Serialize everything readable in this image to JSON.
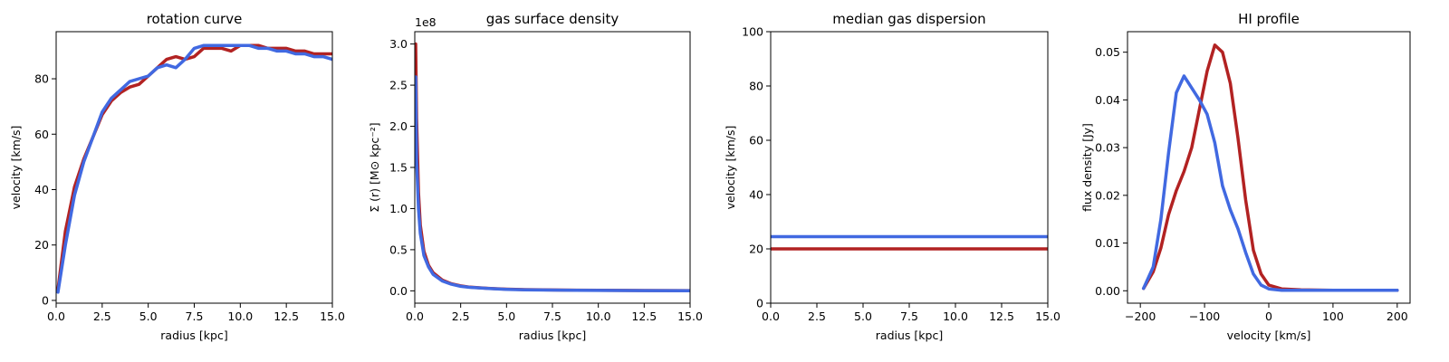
{
  "colors": {
    "red": "#b22222",
    "blue": "#4169e1",
    "axis": "#000000"
  },
  "chart_data": [
    {
      "type": "line",
      "title": "rotation curve",
      "xlabel": "radius [kpc]",
      "ylabel": "velocity [km/s]",
      "xlim": [
        0,
        15
      ],
      "ylim": [
        -1,
        97
      ],
      "xticks": [
        0,
        2.5,
        5,
        7.5,
        10,
        12.5,
        15
      ],
      "xtick_labels": [
        "0.0",
        "2.5",
        "5.0",
        "7.5",
        "10.0",
        "12.5",
        "15.0"
      ],
      "yticks": [
        0,
        20,
        40,
        60,
        80
      ],
      "ytick_labels": [
        "0",
        "20",
        "40",
        "60",
        "80"
      ],
      "grid": false,
      "series": [
        {
          "color": "#b22222",
          "x": [
            0.1,
            0.5,
            1.0,
            1.5,
            2.0,
            2.5,
            3.0,
            3.5,
            4.0,
            4.5,
            5.0,
            5.5,
            6.0,
            6.5,
            7.0,
            7.5,
            8.0,
            8.5,
            9.0,
            9.5,
            10.0,
            10.5,
            11.0,
            11.5,
            12.0,
            12.5,
            13.0,
            13.5,
            14.0,
            14.5,
            15.0
          ],
          "y": [
            4,
            25,
            41,
            51,
            59,
            67,
            72,
            75,
            77,
            78,
            81,
            84,
            87,
            88,
            87,
            88,
            91,
            91,
            91,
            90,
            92,
            92,
            92,
            91,
            91,
            91,
            90,
            90,
            89,
            89,
            89
          ]
        },
        {
          "color": "#4169e1",
          "x": [
            0.1,
            0.5,
            1.0,
            1.5,
            2.0,
            2.5,
            3.0,
            3.5,
            4.0,
            4.5,
            5.0,
            5.5,
            6.0,
            6.5,
            7.0,
            7.5,
            8.0,
            8.5,
            9.0,
            9.5,
            10.0,
            10.5,
            11.0,
            11.5,
            12.0,
            12.5,
            13.0,
            13.5,
            14.0,
            14.5,
            15.0
          ],
          "y": [
            3,
            20,
            38,
            50,
            59,
            68,
            73,
            76,
            79,
            80,
            81,
            84,
            85,
            84,
            87,
            91,
            92,
            92,
            92,
            92,
            92,
            92,
            91,
            91,
            90,
            90,
            89,
            89,
            88,
            88,
            87
          ]
        }
      ]
    },
    {
      "type": "line",
      "title": "gas surface density",
      "xlabel": "radius [kpc]",
      "ylabel": "Σ (r) [M⊙ kpc⁻²]",
      "offset_label": "1e8",
      "xlim": [
        0,
        15
      ],
      "ylim": [
        -0.15,
        3.15
      ],
      "xticks": [
        0,
        2.5,
        5,
        7.5,
        10,
        12.5,
        15
      ],
      "xtick_labels": [
        "0.0",
        "2.5",
        "5.0",
        "7.5",
        "10.0",
        "12.5",
        "15.0"
      ],
      "yticks": [
        0,
        0.5,
        1.0,
        1.5,
        2.0,
        2.5,
        3.0
      ],
      "ytick_labels": [
        "0.0",
        "0.5",
        "1.0",
        "1.5",
        "2.0",
        "2.5",
        "3.0"
      ],
      "grid": false,
      "series": [
        {
          "color": "#b22222",
          "x": [
            0.05,
            0.1,
            0.2,
            0.3,
            0.5,
            0.75,
            1.0,
            1.5,
            2.0,
            2.5,
            3.0,
            4.0,
            5.0,
            6.0,
            8.0,
            10.0,
            12.5,
            15.0
          ],
          "y": [
            3.0,
            2.1,
            1.2,
            0.8,
            0.48,
            0.31,
            0.22,
            0.13,
            0.085,
            0.06,
            0.045,
            0.03,
            0.02,
            0.015,
            0.01,
            0.006,
            0.004,
            0.003
          ]
        },
        {
          "color": "#4169e1",
          "x": [
            0.05,
            0.1,
            0.2,
            0.3,
            0.5,
            0.75,
            1.0,
            1.5,
            2.0,
            2.5,
            3.0,
            4.0,
            5.0,
            6.0,
            8.0,
            10.0,
            12.5,
            15.0
          ],
          "y": [
            2.6,
            1.6,
            1.0,
            0.7,
            0.43,
            0.29,
            0.2,
            0.12,
            0.08,
            0.055,
            0.042,
            0.028,
            0.018,
            0.013,
            0.008,
            0.005,
            0.003,
            0.002
          ]
        }
      ]
    },
    {
      "type": "line",
      "title": "median gas dispersion",
      "xlabel": "radius [kpc]",
      "ylabel": "velocity [km/s]",
      "xlim": [
        0,
        15
      ],
      "ylim": [
        0,
        100
      ],
      "xticks": [
        0,
        2.5,
        5,
        7.5,
        10,
        12.5,
        15
      ],
      "xtick_labels": [
        "0.0",
        "2.5",
        "5.0",
        "7.5",
        "10.0",
        "12.5",
        "15.0"
      ],
      "yticks": [
        0,
        20,
        40,
        60,
        80,
        100
      ],
      "ytick_labels": [
        "0",
        "20",
        "40",
        "60",
        "80",
        "100"
      ],
      "grid": false,
      "series": [
        {
          "color": "#b22222",
          "x": [
            0,
            15
          ],
          "y": [
            20,
            20
          ]
        },
        {
          "color": "#4169e1",
          "x": [
            0,
            15
          ],
          "y": [
            24.5,
            24.5
          ]
        }
      ]
    },
    {
      "type": "line",
      "title": "HI profile",
      "xlabel": "velocity [km/s]",
      "ylabel": "flux density [Jy]",
      "xlim": [
        -220,
        220
      ],
      "ylim": [
        -0.0026,
        0.0543
      ],
      "xticks": [
        -200,
        -100,
        0,
        100,
        200
      ],
      "xtick_labels": [
        "−200",
        "−100",
        "0",
        "100",
        "200"
      ],
      "yticks": [
        0,
        0.01,
        0.02,
        0.03,
        0.04,
        0.05
      ],
      "ytick_labels": [
        "0.00",
        "0.01",
        "0.02",
        "0.03",
        "0.04",
        "0.05"
      ],
      "grid": false,
      "series": [
        {
          "color": "#b22222",
          "x": [
            -195,
            -180,
            -168,
            -156,
            -144,
            -132,
            -120,
            -108,
            -96,
            -84,
            -72,
            -60,
            -48,
            -36,
            -24,
            -12,
            0,
            20,
            50,
            100,
            150,
            200
          ],
          "y": [
            0.0005,
            0.004,
            0.009,
            0.016,
            0.021,
            0.025,
            0.03,
            0.038,
            0.046,
            0.0515,
            0.05,
            0.0435,
            0.032,
            0.019,
            0.0085,
            0.0035,
            0.0012,
            0.0004,
            0.0002,
            0.0001,
            0.0001,
            0.0001
          ]
        },
        {
          "color": "#4169e1",
          "x": [
            -195,
            -180,
            -168,
            -156,
            -144,
            -132,
            -120,
            -108,
            -96,
            -84,
            -72,
            -60,
            -48,
            -36,
            -24,
            -12,
            0,
            20,
            50,
            100,
            150,
            200
          ],
          "y": [
            0.0005,
            0.005,
            0.015,
            0.029,
            0.0415,
            0.045,
            0.0425,
            0.04,
            0.037,
            0.031,
            0.022,
            0.017,
            0.013,
            0.008,
            0.0035,
            0.0012,
            0.0004,
            0.0001,
            0.0001,
            0.0001,
            0.0001,
            0.0001
          ]
        }
      ]
    }
  ]
}
